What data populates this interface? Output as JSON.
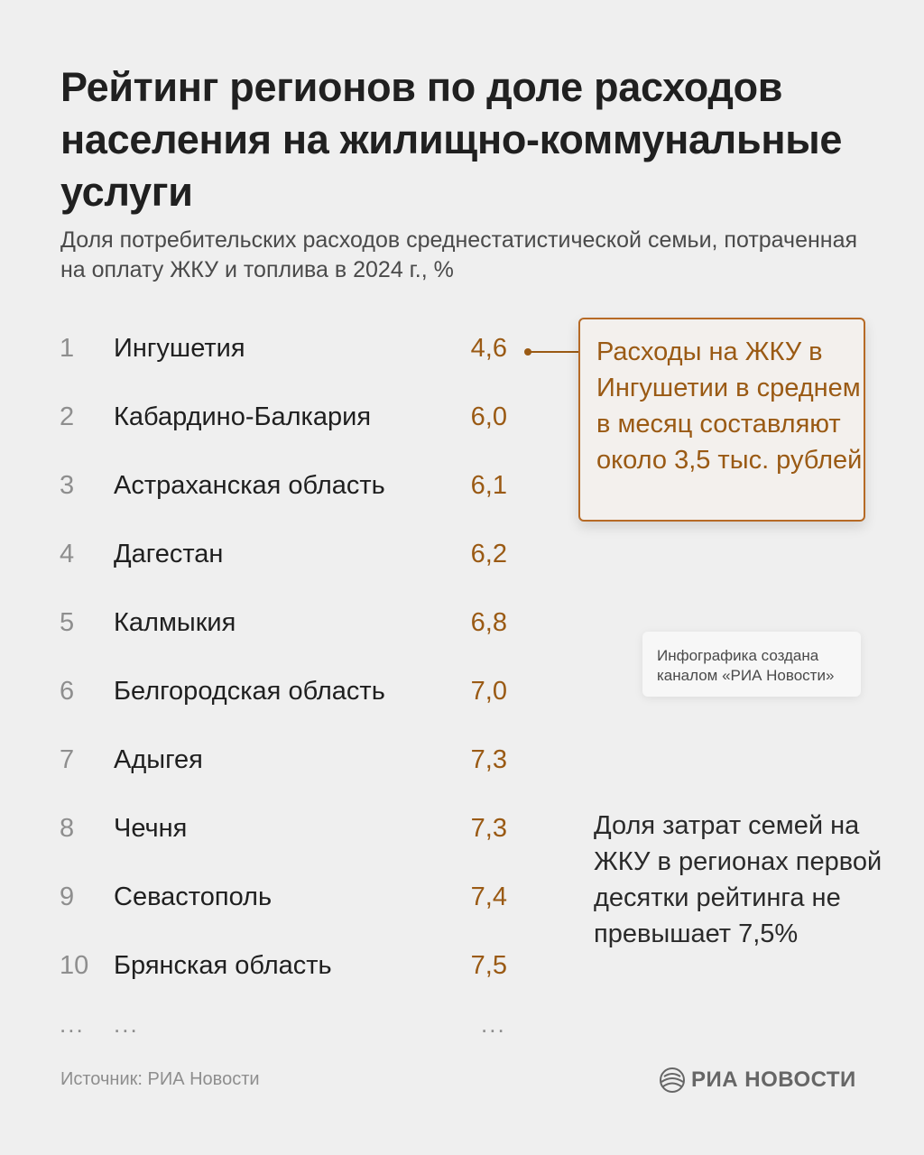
{
  "title": "Рейтинг регионов по доле расходов населения на жилищно-коммунальные услуги",
  "subtitle": "Доля потребительских расходов среднестатистической семьи, потраченная на оплату ЖКУ и топлива в 2024 г., %",
  "chart_data": {
    "type": "table",
    "title": "Рейтинг регионов по доле расходов населения на жилищно-коммунальные услуги",
    "subtitle": "Доля потребительских расходов среднестатистической семьи, потраченная на оплату ЖКУ и топлива в 2024 г., %",
    "columns": [
      "rank",
      "region",
      "value"
    ],
    "rows": [
      {
        "rank": "1",
        "region": "Ингушетия",
        "value": "4,6"
      },
      {
        "rank": "2",
        "region": "Кабардино-Балкария",
        "value": "6,0"
      },
      {
        "rank": "3",
        "region": "Астраханская область",
        "value": "6,1"
      },
      {
        "rank": "4",
        "region": "Дагестан",
        "value": "6,2"
      },
      {
        "rank": "5",
        "region": "Калмыкия",
        "value": "6,8"
      },
      {
        "rank": "6",
        "region": "Белгородская область",
        "value": "7,0"
      },
      {
        "rank": "7",
        "region": "Адыгея",
        "value": "7,3"
      },
      {
        "rank": "8",
        "region": "Чечня",
        "value": "7,3"
      },
      {
        "rank": "9",
        "region": "Севастополь",
        "value": "7,4"
      },
      {
        "rank": "10",
        "region": "Брянская область",
        "value": "7,5"
      }
    ],
    "continuation": "...",
    "value_color": "#9a5a14",
    "callout": {
      "points_to_rank": "1",
      "text": "Расходы на ЖКУ в Ингушетии в среднем в месяц составляют около 3,5 тыс. рублей"
    },
    "note": "Доля затрат семей на ЖКУ в регионах первой десятки рейтинга не превышает 7,5%"
  },
  "credit": "Инфографика создана каналом «РИА Новости»",
  "source": "Источник: РИА Новости",
  "logo": {
    "text": "РИА НОВОСТИ",
    "icon": "ria-globe-icon"
  },
  "colors": {
    "background": "#efefef",
    "accent": "#9a5a14",
    "callout_border": "#b66a26",
    "text": "#1f1f1f",
    "muted": "#8e8e8e"
  }
}
